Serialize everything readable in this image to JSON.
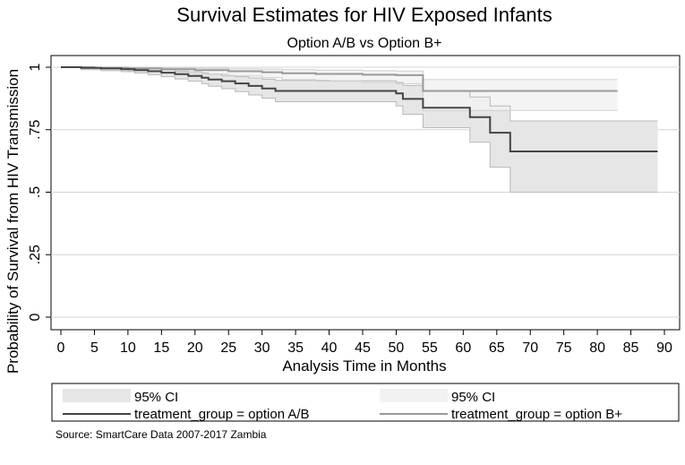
{
  "chart_data": {
    "type": "line",
    "subtype": "kaplan-meier-step",
    "title": "Survival Estimates for HIV Exposed Infants",
    "subtitle": "Option A/B vs Option B+",
    "xlabel": "Analysis Time in Months",
    "ylabel": "Probability of Survival from HIV Transmission",
    "xlim": [
      0,
      90
    ],
    "ylim": [
      0,
      1
    ],
    "x_ticks": [
      0,
      5,
      10,
      15,
      20,
      25,
      30,
      35,
      40,
      45,
      50,
      55,
      60,
      65,
      70,
      75,
      80,
      85,
      90
    ],
    "x_tick_labels": [
      "0",
      "5",
      "10",
      "15",
      "20",
      "25",
      "30",
      "35",
      "40",
      "45",
      "50",
      "55",
      "60",
      "65",
      "70",
      "75",
      "80",
      "85",
      "90"
    ],
    "y_ticks": [
      0,
      0.25,
      0.5,
      0.75,
      1
    ],
    "y_tick_labels": [
      "0",
      ".25",
      ".5",
      ".75",
      "1"
    ],
    "grid": "horizontal",
    "series": [
      {
        "name": "treatment_group = option A/B",
        "color": "#444444",
        "ci_color": "#e6e6e6",
        "x": [
          0,
          3,
          6,
          9,
          11,
          13,
          15,
          17,
          19,
          21,
          22,
          24,
          26,
          28,
          30,
          32,
          40,
          50,
          51,
          54,
          61,
          64,
          67,
          89
        ],
        "survival": [
          1.0,
          0.997,
          0.995,
          0.992,
          0.988,
          0.984,
          0.978,
          0.972,
          0.965,
          0.958,
          0.951,
          0.944,
          0.935,
          0.925,
          0.915,
          0.905,
          0.905,
          0.895,
          0.873,
          0.838,
          0.8,
          0.738,
          0.663,
          0.663
        ],
        "ci_upper": [
          1.0,
          1.0,
          0.999,
          0.998,
          0.996,
          0.993,
          0.989,
          0.985,
          0.981,
          0.977,
          0.972,
          0.967,
          0.962,
          0.957,
          0.952,
          0.947,
          0.945,
          0.939,
          0.927,
          0.906,
          0.881,
          0.845,
          0.785,
          0.785
        ],
        "ci_lower": [
          1.0,
          0.99,
          0.986,
          0.982,
          0.977,
          0.97,
          0.962,
          0.953,
          0.944,
          0.934,
          0.924,
          0.914,
          0.902,
          0.889,
          0.876,
          0.862,
          0.862,
          0.845,
          0.812,
          0.758,
          0.7,
          0.6,
          0.5,
          0.5
        ]
      },
      {
        "name": "treatment_group = option B+",
        "color": "#999999",
        "ci_color": "#f2f2f2",
        "x": [
          0,
          5,
          10,
          15,
          20,
          25,
          30,
          33,
          38,
          45,
          50,
          54,
          83
        ],
        "survival": [
          1.0,
          0.998,
          0.995,
          0.992,
          0.988,
          0.984,
          0.98,
          0.976,
          0.973,
          0.97,
          0.968,
          0.905,
          0.905
        ],
        "ci_upper": [
          1.0,
          1.0,
          0.999,
          0.998,
          0.996,
          0.994,
          0.992,
          0.99,
          0.988,
          0.986,
          0.985,
          0.95,
          0.95
        ],
        "ci_lower": [
          1.0,
          0.993,
          0.986,
          0.98,
          0.972,
          0.965,
          0.958,
          0.95,
          0.944,
          0.938,
          0.934,
          0.827,
          0.827
        ]
      }
    ],
    "legend": {
      "placement": "bottom",
      "entries": [
        {
          "label": "95% CI",
          "kind": "ci",
          "series": 0
        },
        {
          "label": "95% CI",
          "kind": "ci",
          "series": 1
        },
        {
          "label": "treatment_group = option A/B",
          "kind": "line",
          "series": 0
        },
        {
          "label": "treatment_group = option B+",
          "kind": "line",
          "series": 1
        }
      ]
    },
    "note": "Source: SmartCare Data 2007-2017 Zambia"
  }
}
